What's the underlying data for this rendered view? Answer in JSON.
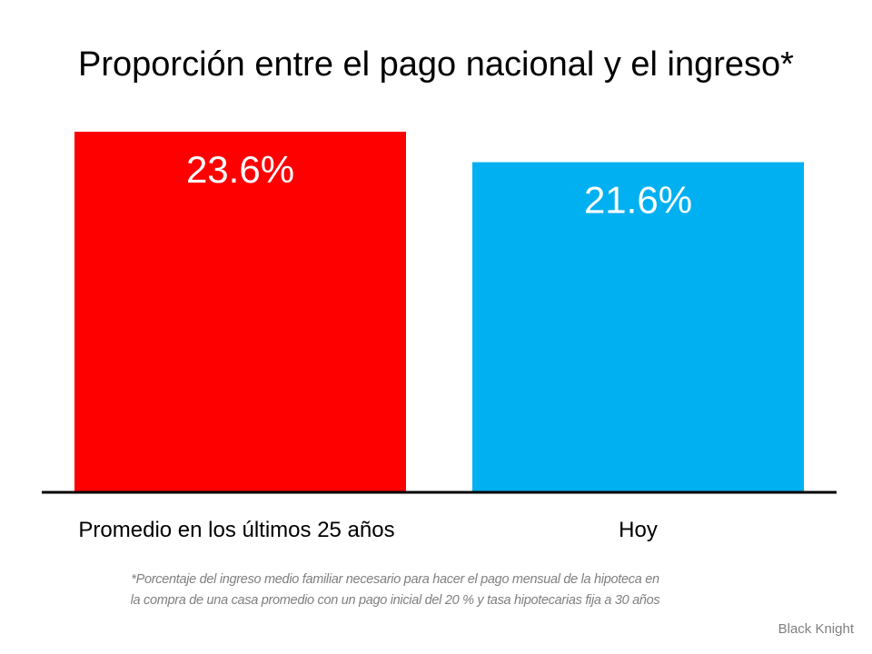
{
  "chart_data": {
    "type": "bar",
    "title": "Proporción entre el pago nacional y el ingreso*",
    "categories": [
      "Promedio en los últimos 25 años",
      "Hoy"
    ],
    "values": [
      23.6,
      21.6
    ],
    "data_labels": [
      "23.6%",
      "21.6%"
    ],
    "colors": [
      "#ff0000",
      "#00b0f0"
    ],
    "ylim": [
      0,
      23.6
    ],
    "grid": false,
    "xlabel": "",
    "ylabel": ""
  },
  "footnote": {
    "line1": "*Porcentaje del ingreso medio familiar necesario para hacer el pago mensual de la hipoteca en",
    "line2": "la compra de una casa promedio con un pago inicial del 20 % y tasa hipotecarias fija a 30 años"
  },
  "source": "Black Knight"
}
